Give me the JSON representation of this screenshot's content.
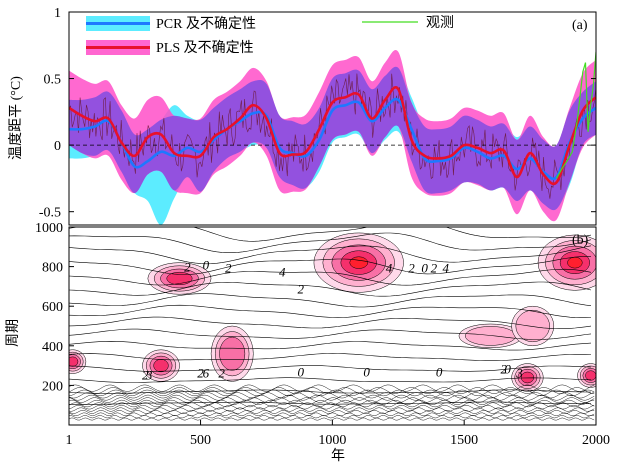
{
  "chart_data": [
    {
      "type": "line",
      "panel_label": "(a)",
      "ylabel": "温度距平 (°C)",
      "xlim": [
        1,
        2000
      ],
      "ylim": [
        -0.6,
        1.0
      ],
      "yticks": [
        -0.5,
        0,
        0.5,
        1
      ],
      "ytick_labels": [
        "-0.5",
        "0",
        "0.5",
        "1"
      ],
      "zero_line": "dashed",
      "legend": {
        "placement": "top",
        "entries": [
          "PCR 及不确定性",
          "PLS 及不确定性",
          "观测"
        ]
      },
      "x": [
        1,
        50,
        100,
        150,
        200,
        250,
        300,
        350,
        400,
        450,
        500,
        550,
        600,
        650,
        700,
        750,
        800,
        850,
        900,
        950,
        1000,
        1050,
        1100,
        1150,
        1200,
        1250,
        1300,
        1350,
        1400,
        1450,
        1500,
        1550,
        1600,
        1650,
        1700,
        1750,
        1800,
        1850,
        1900,
        1950,
        2000
      ],
      "series": [
        {
          "name": "PCR 及不确定性",
          "color": "#1e78ff",
          "band_color": "#00e5ff",
          "values": [
            0.12,
            0.12,
            0.14,
            0.18,
            0.02,
            -0.16,
            -0.12,
            -0.05,
            -0.08,
            -0.02,
            -0.05,
            0.04,
            0.12,
            0.18,
            0.24,
            0.22,
            -0.02,
            -0.06,
            -0.08,
            0.04,
            0.26,
            0.3,
            0.32,
            0.18,
            0.28,
            0.34,
            0.12,
            -0.1,
            -0.12,
            -0.1,
            -0.02,
            -0.05,
            -0.1,
            -0.08,
            -0.18,
            -0.1,
            -0.2,
            -0.24,
            0.02,
            0.2,
            0.28
          ],
          "lower": [
            -0.1,
            -0.1,
            -0.08,
            -0.04,
            -0.2,
            -0.36,
            -0.42,
            -0.6,
            -0.4,
            -0.24,
            -0.35,
            -0.2,
            -0.1,
            -0.05,
            0.0,
            -0.02,
            -0.24,
            -0.3,
            -0.32,
            -0.2,
            0.02,
            0.06,
            0.08,
            -0.06,
            0.04,
            0.1,
            -0.12,
            -0.34,
            -0.36,
            -0.34,
            -0.28,
            -0.29,
            -0.34,
            -0.32,
            -0.42,
            -0.34,
            -0.44,
            -0.48,
            -0.3,
            0.0,
            0.08
          ],
          "upper": [
            0.34,
            0.34,
            0.36,
            0.4,
            0.26,
            0.08,
            0.12,
            0.19,
            0.3,
            0.22,
            0.19,
            0.28,
            0.36,
            0.42,
            0.48,
            0.46,
            0.22,
            0.18,
            0.16,
            0.28,
            0.5,
            0.54,
            0.56,
            0.42,
            0.52,
            0.58,
            0.36,
            0.14,
            0.12,
            0.14,
            0.22,
            0.19,
            0.14,
            0.16,
            0.06,
            0.14,
            0.04,
            0.0,
            0.26,
            0.4,
            0.48
          ]
        },
        {
          "name": "PLS 及不确定性",
          "color": "#e8102b",
          "band_color": "#ff4fc8",
          "values": [
            0.28,
            0.22,
            0.18,
            0.2,
            0.02,
            -0.08,
            0.06,
            0.08,
            -0.06,
            -0.08,
            -0.08,
            0.06,
            0.12,
            0.2,
            0.3,
            0.2,
            -0.06,
            -0.07,
            -0.05,
            0.12,
            0.32,
            0.36,
            0.38,
            0.2,
            0.34,
            0.42,
            0.04,
            -0.08,
            -0.1,
            -0.08,
            0.0,
            -0.02,
            -0.06,
            -0.04,
            -0.24,
            -0.06,
            -0.22,
            -0.28,
            0.0,
            0.26,
            0.36
          ],
          "lower": [
            0.0,
            -0.06,
            -0.1,
            -0.08,
            -0.26,
            -0.36,
            -0.22,
            -0.2,
            -0.34,
            -0.36,
            -0.36,
            -0.22,
            -0.16,
            -0.08,
            0.02,
            -0.08,
            -0.34,
            -0.35,
            -0.33,
            -0.16,
            0.04,
            0.08,
            0.1,
            -0.08,
            0.06,
            0.14,
            -0.24,
            -0.36,
            -0.38,
            -0.36,
            -0.28,
            -0.3,
            -0.34,
            -0.32,
            -0.52,
            -0.34,
            -0.5,
            -0.56,
            -0.28,
            -0.02,
            0.08
          ],
          "upper": [
            0.56,
            0.5,
            0.46,
            0.48,
            0.3,
            0.2,
            0.34,
            0.36,
            0.22,
            0.2,
            0.2,
            0.34,
            0.4,
            0.48,
            0.58,
            0.48,
            0.22,
            0.21,
            0.23,
            0.4,
            0.6,
            0.64,
            0.66,
            0.48,
            0.62,
            0.7,
            0.32,
            0.2,
            0.18,
            0.2,
            0.28,
            0.26,
            0.22,
            0.24,
            0.04,
            0.22,
            0.06,
            0.0,
            0.28,
            0.54,
            0.64
          ]
        },
        {
          "name": "观测",
          "color": "#44dd22",
          "x": [
            1850,
            1870,
            1890,
            1910,
            1930,
            1950,
            1960,
            1970,
            1980,
            1990,
            2000
          ],
          "values": [
            -0.25,
            -0.18,
            -0.12,
            -0.05,
            0.2,
            0.55,
            0.62,
            0.1,
            0.3,
            0.45,
            0.7
          ]
        }
      ]
    },
    {
      "type": "heatmap",
      "panel_label": "(b)",
      "ylabel": "周期",
      "xlabel": "年",
      "xlim": [
        1,
        2000
      ],
      "ylim": [
        0,
        1000
      ],
      "xticks": [
        1,
        500,
        1000,
        1500,
        2000
      ],
      "xtick_labels": [
        "1",
        "500",
        "1000",
        "1500",
        "2000"
      ],
      "yticks": [
        200,
        400,
        600,
        800,
        1000
      ],
      "ytick_labels": [
        "200",
        "400",
        "600",
        "800",
        "1000"
      ],
      "contour_labels": [
        {
          "text": "2",
          "x": 450,
          "y": 775
        },
        {
          "text": "0",
          "x": 520,
          "y": 785
        },
        {
          "text": "2",
          "x": 605,
          "y": 770
        },
        {
          "text": "4",
          "x": 810,
          "y": 750
        },
        {
          "text": "2",
          "x": 880,
          "y": 665
        },
        {
          "text": "4",
          "x": 1215,
          "y": 770
        },
        {
          "text": "2",
          "x": 1300,
          "y": 770
        },
        {
          "text": "0",
          "x": 1350,
          "y": 770
        },
        {
          "text": "2",
          "x": 1385,
          "y": 770
        },
        {
          "text": "4",
          "x": 1430,
          "y": 770
        },
        {
          "text": "2",
          "x": 290,
          "y": 230
        },
        {
          "text": "3",
          "x": 305,
          "y": 230
        },
        {
          "text": "2",
          "x": 500,
          "y": 240
        },
        {
          "text": "6",
          "x": 520,
          "y": 240
        },
        {
          "text": "2",
          "x": 580,
          "y": 240
        },
        {
          "text": "0",
          "x": 880,
          "y": 245
        },
        {
          "text": "0",
          "x": 1130,
          "y": 245
        },
        {
          "text": "0",
          "x": 1405,
          "y": 245
        },
        {
          "text": "2",
          "x": 1650,
          "y": 260
        },
        {
          "text": "0",
          "x": 1665,
          "y": 260
        },
        {
          "text": "3",
          "x": 1710,
          "y": 240
        }
      ],
      "positive_regions": [
        {
          "x": 1100,
          "y": 820,
          "rx": 170,
          "ry": 150,
          "level": 4
        },
        {
          "x": 1920,
          "y": 820,
          "rx": 140,
          "ry": 140,
          "level": 4
        },
        {
          "x": 420,
          "y": 740,
          "rx": 120,
          "ry": 80,
          "level": 3
        },
        {
          "x": 350,
          "y": 300,
          "rx": 70,
          "ry": 80,
          "level": 3
        },
        {
          "x": 15,
          "y": 320,
          "rx": 50,
          "ry": 60,
          "level": 3
        },
        {
          "x": 620,
          "y": 360,
          "rx": 80,
          "ry": 140,
          "level": 2
        },
        {
          "x": 1740,
          "y": 240,
          "rx": 60,
          "ry": 70,
          "level": 3
        },
        {
          "x": 1980,
          "y": 250,
          "rx": 50,
          "ry": 60,
          "level": 3
        },
        {
          "x": 1600,
          "y": 450,
          "rx": 120,
          "ry": 60,
          "level": 1
        },
        {
          "x": 1760,
          "y": 500,
          "rx": 80,
          "ry": 100,
          "level": 1
        }
      ]
    }
  ]
}
